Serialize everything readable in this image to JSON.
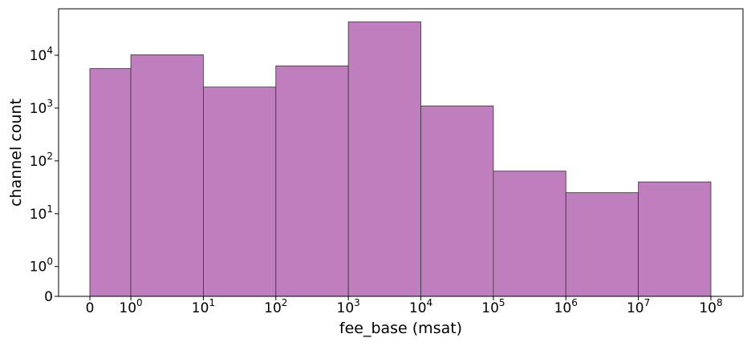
{
  "chart_data": {
    "type": "bar",
    "xlabel": "fee_base (msat)",
    "ylabel": "channel count",
    "x_scale": "symlog",
    "y_scale": "symlog",
    "bar_color": "#bf7fbf",
    "edge_color": "#333333",
    "bins": [
      {
        "x0": 0,
        "x1": 1,
        "count": 5600
      },
      {
        "x0": 1,
        "x1": 10,
        "count": 10200
      },
      {
        "x0": 10,
        "x1": 100,
        "count": 2500
      },
      {
        "x0": 100,
        "x1": 1000,
        "count": 6300
      },
      {
        "x0": 1000,
        "x1": 10000,
        "count": 43000
      },
      {
        "x0": 10000,
        "x1": 100000,
        "count": 1100
      },
      {
        "x0": 100000,
        "x1": 1000000,
        "count": 64
      },
      {
        "x0": 1000000,
        "x1": 10000000,
        "count": 25
      },
      {
        "x0": 10000000,
        "x1": 100000000,
        "count": 40
      }
    ],
    "xticks": [
      {
        "value": 0,
        "base": "0",
        "exp": ""
      },
      {
        "value": 1,
        "base": "10",
        "exp": "0"
      },
      {
        "value": 10,
        "base": "10",
        "exp": "1"
      },
      {
        "value": 100,
        "base": "10",
        "exp": "2"
      },
      {
        "value": 1000,
        "base": "10",
        "exp": "3"
      },
      {
        "value": 10000,
        "base": "10",
        "exp": "4"
      },
      {
        "value": 100000,
        "base": "10",
        "exp": "5"
      },
      {
        "value": 1000000,
        "base": "10",
        "exp": "6"
      },
      {
        "value": 10000000,
        "base": "10",
        "exp": "7"
      },
      {
        "value": 100000000,
        "base": "10",
        "exp": "8"
      }
    ],
    "yticks": [
      {
        "value": 0,
        "base": "0",
        "exp": ""
      },
      {
        "value": 1,
        "base": "10",
        "exp": "0"
      },
      {
        "value": 10,
        "base": "10",
        "exp": "1"
      },
      {
        "value": 100,
        "base": "10",
        "exp": "2"
      },
      {
        "value": 1000,
        "base": "10",
        "exp": "3"
      },
      {
        "value": 10000,
        "base": "10",
        "exp": "4"
      }
    ],
    "ylim": [
      0,
      80000
    ],
    "grid": false,
    "legend": "none"
  }
}
